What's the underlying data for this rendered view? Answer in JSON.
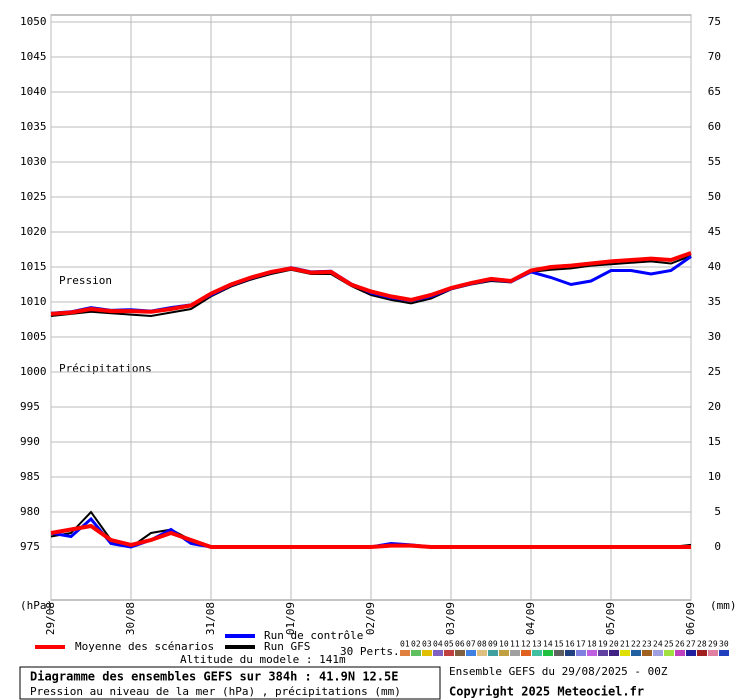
{
  "chart_data": {
    "type": "line",
    "title": "Diagramme des ensembles GEFS sur 384h : 41.9N 12.5E",
    "subtitle": "Pression au niveau de la mer (hPa) , précipitations (mm)",
    "run_info": "Ensemble GEFS du 29/08/2025 - 00Z",
    "copyright": "Copyright 2025 Meteociel.fr",
    "altitude": "Altitude du modele : 141m",
    "perturbations_label": "30 Perts.",
    "pressure_label": "Pression",
    "precip_label": "Précipitations",
    "y_label": "(hPa)",
    "y2_label": "(mm)",
    "grid": true,
    "x": [
      0,
      6,
      12,
      18,
      24,
      30,
      36,
      42,
      48,
      54,
      60,
      66,
      72,
      78,
      84,
      90,
      96,
      102,
      108,
      114,
      120,
      126,
      132,
      138,
      144,
      150,
      156,
      162,
      168,
      174,
      180,
      186,
      192
    ],
    "xlim": [
      0,
      192
    ],
    "xticks": [
      {
        "value": 0,
        "label": "29/08"
      },
      {
        "value": 24,
        "label": "30/08"
      },
      {
        "value": 48,
        "label": "31/08"
      },
      {
        "value": 72,
        "label": "01/09"
      },
      {
        "value": 96,
        "label": "02/09"
      },
      {
        "value": 120,
        "label": "03/09"
      },
      {
        "value": 144,
        "label": "04/09"
      },
      {
        "value": 168,
        "label": "05/09"
      },
      {
        "value": 192,
        "label": "06/09"
      }
    ],
    "ylim": [
      967.43,
      1051
    ],
    "yticks": [
      975,
      980,
      985,
      990,
      995,
      1000,
      1005,
      1010,
      1015,
      1020,
      1025,
      1030,
      1035,
      1040,
      1045,
      1050
    ],
    "y2lim": [
      -7.57,
      76
    ],
    "y2ticks": [
      0,
      5,
      10,
      15,
      20,
      25,
      30,
      35,
      40,
      45,
      50,
      55,
      60,
      65,
      70,
      75
    ],
    "series": [
      {
        "name": "Run GFS",
        "color": "#000000",
        "width": 2,
        "pressure": [
          1008.0,
          1008.3,
          1008.6,
          1008.4,
          1008.2,
          1008.0,
          1008.5,
          1009.0,
          1010.8,
          1012.2,
          1013.2,
          1014.0,
          1014.6,
          1014.0,
          1014.0,
          1012.3,
          1011.0,
          1010.3,
          1009.8,
          1010.5,
          1011.8,
          1012.5,
          1013.0,
          1012.8,
          1014.3,
          1014.6,
          1014.8,
          1015.2,
          1015.4,
          1015.6,
          1015.8,
          1015.5,
          1016.6
        ],
        "precipitation": [
          1.5,
          2.0,
          5.0,
          1.0,
          0,
          2.0,
          2.5,
          1.0,
          0,
          0,
          0,
          0,
          0,
          0,
          0,
          0,
          0,
          0.3,
          0.2,
          0,
          0,
          0,
          0,
          0,
          0,
          0,
          0,
          0,
          0,
          0,
          0,
          0,
          0.3
        ]
      },
      {
        "name": "Run de contrôle",
        "color": "#0000ff",
        "width": 3,
        "pressure": [
          1008.4,
          1008.6,
          1009.2,
          1008.8,
          1008.9,
          1008.7,
          1009.2,
          1009.6,
          1011.0,
          1012.4,
          1013.4,
          1014.2,
          1014.9,
          1014.3,
          1014.4,
          1012.6,
          1011.3,
          1010.6,
          1010.2,
          1010.8,
          1011.9,
          1012.6,
          1013.2,
          1012.9,
          1014.3,
          1013.5,
          1012.5,
          1013.0,
          1014.5,
          1014.5,
          1014.0,
          1014.5,
          1016.5
        ],
        "precipitation": [
          2.0,
          1.5,
          4.0,
          0.5,
          0,
          1.0,
          2.5,
          0.5,
          0,
          0,
          0,
          0,
          0,
          0,
          0,
          0,
          0,
          0.5,
          0.3,
          0,
          0,
          0,
          0,
          0,
          0,
          0,
          0,
          0,
          0,
          0,
          0,
          0,
          0
        ]
      },
      {
        "name": "Moyenne des scénarios",
        "color": "#ff0000",
        "width": 4,
        "pressure": [
          1008.3,
          1008.5,
          1009.0,
          1008.7,
          1008.7,
          1008.6,
          1009.0,
          1009.5,
          1011.2,
          1012.5,
          1013.5,
          1014.3,
          1014.8,
          1014.2,
          1014.3,
          1012.5,
          1011.5,
          1010.8,
          1010.3,
          1011.0,
          1012.0,
          1012.7,
          1013.3,
          1013.0,
          1014.5,
          1015.0,
          1015.2,
          1015.5,
          1015.8,
          1016.0,
          1016.2,
          1016.0,
          1017.0
        ],
        "precipitation": [
          2.0,
          2.5,
          3.0,
          1.0,
          0.3,
          1.0,
          2.0,
          1.0,
          0,
          0,
          0,
          0,
          0,
          0,
          0,
          0,
          0,
          0.2,
          0.2,
          0,
          0,
          0,
          0,
          0,
          0,
          0,
          0,
          0,
          0,
          0,
          0,
          0,
          0
        ]
      }
    ],
    "perturbations": [
      {
        "name": "01",
        "color": "#e08040"
      },
      {
        "name": "02",
        "color": "#60c060"
      },
      {
        "name": "03",
        "color": "#e0c000"
      },
      {
        "name": "04",
        "color": "#8060c0"
      },
      {
        "name": "05",
        "color": "#c04040"
      },
      {
        "name": "06",
        "color": "#806040"
      },
      {
        "name": "07",
        "color": "#4080e0"
      },
      {
        "name": "08",
        "color": "#e0c080"
      },
      {
        "name": "09",
        "color": "#40a0a0"
      },
      {
        "name": "10",
        "color": "#c0a040"
      },
      {
        "name": "11",
        "color": "#a0a0a0"
      },
      {
        "name": "12",
        "color": "#e06020"
      },
      {
        "name": "13",
        "color": "#40c0a0"
      },
      {
        "name": "14",
        "color": "#20c040"
      },
      {
        "name": "15",
        "color": "#606060"
      },
      {
        "name": "16",
        "color": "#204080"
      },
      {
        "name": "17",
        "color": "#8080e0"
      },
      {
        "name": "18",
        "color": "#c060e0"
      },
      {
        "name": "19",
        "color": "#6040a0"
      },
      {
        "name": "20",
        "color": "#402080"
      },
      {
        "name": "21",
        "color": "#e0e000"
      },
      {
        "name": "22",
        "color": "#2060a0"
      },
      {
        "name": "23",
        "color": "#a06020"
      },
      {
        "name": "24",
        "color": "#a0a0e0"
      },
      {
        "name": "25",
        "color": "#a0e040"
      },
      {
        "name": "26",
        "color": "#c040c0"
      },
      {
        "name": "27",
        "color": "#2020a0"
      },
      {
        "name": "28",
        "color": "#a02020"
      },
      {
        "name": "29",
        "color": "#e080a0"
      },
      {
        "name": "30",
        "color": "#2040c0"
      }
    ]
  }
}
